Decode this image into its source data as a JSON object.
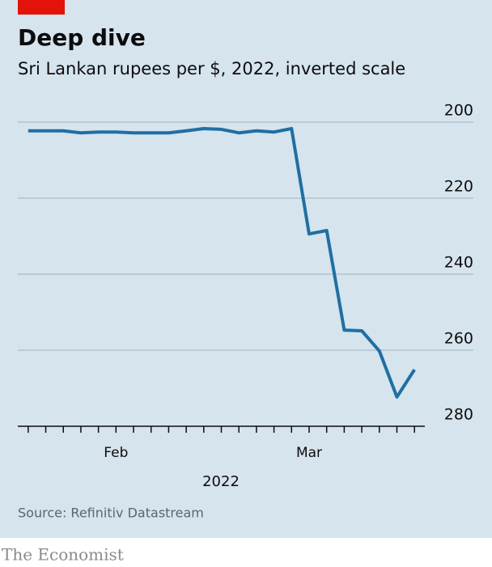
{
  "chart_data": {
    "type": "line",
    "title": "Deep dive",
    "subtitle": "Sri Lankan rupees per $, 2022, inverted scale",
    "categories": [
      null,
      null,
      null,
      null,
      null,
      "Feb",
      null,
      null,
      null,
      null,
      null,
      null,
      null,
      null,
      null,
      null,
      "Mar",
      null,
      null,
      null,
      null,
      null,
      null
    ],
    "x_label": "2022",
    "series": [
      {
        "name": "Rupees per $",
        "color": "#1f6fa3",
        "values": [
          202.3,
          202.3,
          202.3,
          202.8,
          202.6,
          202.6,
          202.8,
          202.8,
          202.8,
          202.3,
          201.7,
          201.9,
          202.8,
          202.3,
          202.6,
          201.7,
          229.4,
          228.5,
          254.7,
          254.9,
          260.2,
          272.3,
          265.1
        ]
      }
    ],
    "ylim": [
      200,
      280
    ],
    "yticks": [
      200,
      220,
      240,
      260,
      280
    ],
    "inverted": true,
    "grid": true,
    "source": "Source: Refinitiv Datastream"
  },
  "footer": "The Economist"
}
